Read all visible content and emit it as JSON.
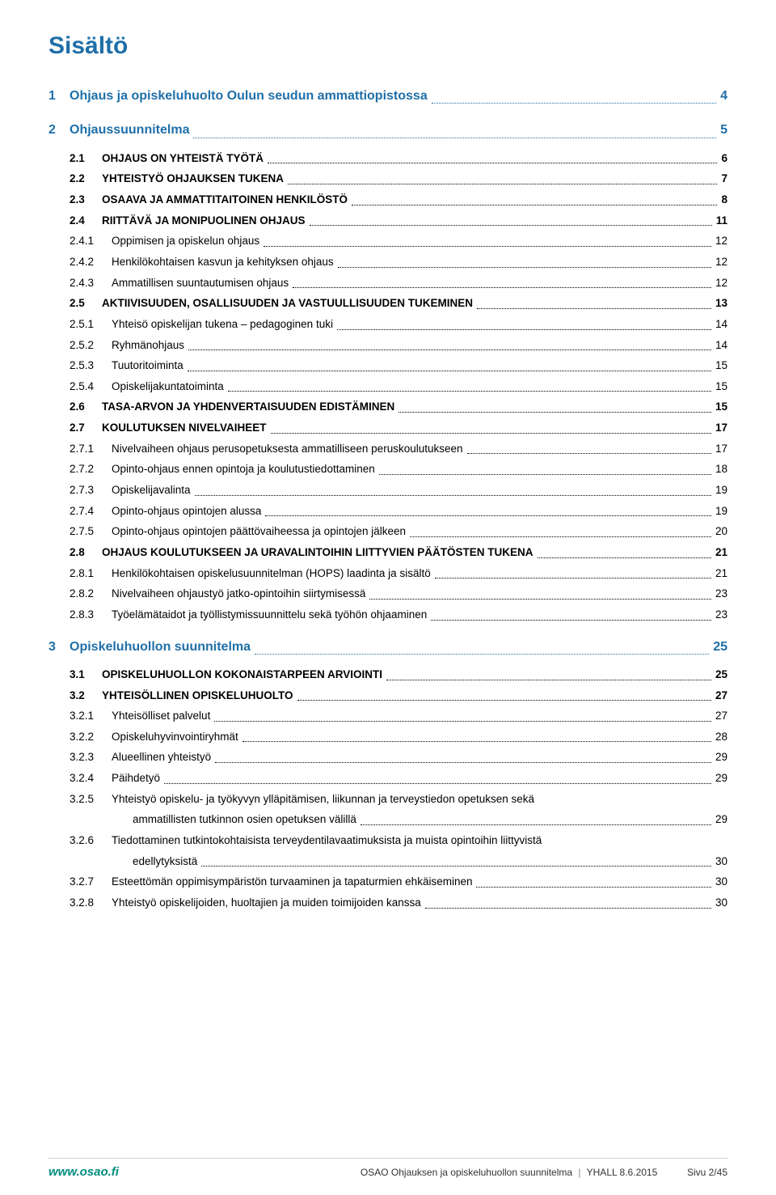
{
  "colors": {
    "heading": "#1f6fa8",
    "text": "#000000",
    "footer_brand": "#008d7e",
    "divider": "#d0d0d0",
    "dots": "#000000"
  },
  "fonts": {
    "title_size_pt": 22,
    "level1_size_pt": 12,
    "body_size_pt": 10,
    "footer_size_pt": 9
  },
  "title": "Sisältö",
  "toc": [
    {
      "level": 1,
      "num": "1",
      "label": "Ohjaus ja opiskeluhuolto Oulun seudun ammattiopistossa",
      "page": "4"
    },
    {
      "level": 1,
      "num": "2",
      "label": "Ohjaussuunnitelma",
      "page": "5"
    },
    {
      "level": 2,
      "num": "2.1",
      "label": "OHJAUS ON YHTEISTÄ TYÖTÄ",
      "page": "6"
    },
    {
      "level": 2,
      "num": "2.2",
      "label": "YHTEISTYÖ OHJAUKSEN TUKENA",
      "page": "7"
    },
    {
      "level": 2,
      "num": "2.3",
      "label": "OSAAVA JA AMMATTITAITOINEN HENKILÖSTÖ",
      "page": "8"
    },
    {
      "level": 2,
      "num": "2.4",
      "label": "RIITTÄVÄ JA MONIPUOLINEN OHJAUS",
      "page": "11"
    },
    {
      "level": 3,
      "num": "2.4.1",
      "label": "Oppimisen ja opiskelun ohjaus",
      "page": "12"
    },
    {
      "level": 3,
      "num": "2.4.2",
      "label": "Henkilökohtaisen kasvun ja kehityksen ohjaus",
      "page": "12"
    },
    {
      "level": 3,
      "num": "2.4.3",
      "label": "Ammatillisen suuntautumisen ohjaus",
      "page": "12"
    },
    {
      "level": 2,
      "num": "2.5",
      "label": "AKTIIVISUUDEN, OSALLISUUDEN JA VASTUULLISUUDEN TUKEMINEN",
      "page": "13"
    },
    {
      "level": 3,
      "num": "2.5.1",
      "label": "Yhteisö opiskelijan tukena – pedagoginen tuki",
      "page": "14"
    },
    {
      "level": 3,
      "num": "2.5.2",
      "label": "Ryhmänohjaus",
      "page": "14"
    },
    {
      "level": 3,
      "num": "2.5.3",
      "label": "Tuutoritoiminta",
      "page": "15"
    },
    {
      "level": 3,
      "num": "2.5.4",
      "label": "Opiskelijakuntatoiminta",
      "page": "15"
    },
    {
      "level": 2,
      "num": "2.6",
      "label": "TASA-ARVON JA YHDENVERTAISUUDEN EDISTÄMINEN",
      "page": "15"
    },
    {
      "level": 2,
      "num": "2.7",
      "label": "KOULUTUKSEN NIVELVAIHEET",
      "page": "17"
    },
    {
      "level": 3,
      "num": "2.7.1",
      "label": "Nivelvaiheen ohjaus perusopetuksesta ammatilliseen peruskoulutukseen",
      "page": "17"
    },
    {
      "level": 3,
      "num": "2.7.2",
      "label": "Opinto-ohjaus ennen opintoja ja koulutustiedottaminen",
      "page": "18"
    },
    {
      "level": 3,
      "num": "2.7.3",
      "label": "Opiskelijavalinta",
      "page": "19"
    },
    {
      "level": 3,
      "num": "2.7.4",
      "label": "Opinto-ohjaus opintojen alussa",
      "page": "19"
    },
    {
      "level": 3,
      "num": "2.7.5",
      "label": "Opinto-ohjaus opintojen päättövaiheessa ja opintojen jälkeen",
      "page": "20"
    },
    {
      "level": 2,
      "num": "2.8",
      "label": "OHJAUS KOULUTUKSEEN JA URAVALINTOIHIN LIITTYVIEN PÄÄTÖSTEN TUKENA",
      "page": "21"
    },
    {
      "level": 3,
      "num": "2.8.1",
      "label": "Henkilökohtaisen opiskelusuunnitelman (HOPS) laadinta ja sisältö",
      "page": "21"
    },
    {
      "level": 3,
      "num": "2.8.2",
      "label": "Nivelvaiheen ohjaustyö jatko-opintoihin siirtymisessä",
      "page": "23"
    },
    {
      "level": 3,
      "num": "2.8.3",
      "label": "Työelämätaidot ja työllistymissuunnittelu sekä työhön ohjaaminen",
      "page": "23"
    },
    {
      "level": 1,
      "num": "3",
      "label": "Opiskeluhuollon suunnitelma",
      "page": "25"
    },
    {
      "level": 2,
      "num": "3.1",
      "label": "OPISKELUHUOLLON KOKONAISTARPEEN ARVIOINTI",
      "page": "25"
    },
    {
      "level": 2,
      "num": "3.2",
      "label": "YHTEISÖLLINEN OPISKELUHUOLTO",
      "page": "27"
    },
    {
      "level": 3,
      "num": "3.2.1",
      "label": "Yhteisölliset palvelut",
      "page": "27"
    },
    {
      "level": 3,
      "num": "3.2.2",
      "label": "Opiskeluhyvinvointiryhmät",
      "page": "28"
    },
    {
      "level": 3,
      "num": "3.2.3",
      "label": "Alueellinen yhteistyö",
      "page": "29"
    },
    {
      "level": 3,
      "num": "3.2.4",
      "label": "Päihdetyö",
      "page": "29"
    },
    {
      "level": 3,
      "num": "3.2.5",
      "label": "Yhteistyö opiskelu- ja työkyvyn ylläpitämisen, liikunnan ja terveystiedon opetuksen sekä",
      "cont": "ammatillisten tutkinnon osien opetuksen välillä",
      "page": "29"
    },
    {
      "level": 3,
      "num": "3.2.6",
      "label": "Tiedottaminen tutkintokohtaisista terveydentilavaatimuksista ja muista opintoihin liittyvistä",
      "cont": "edellytyksistä",
      "page": "30"
    },
    {
      "level": 3,
      "num": "3.2.7",
      "label": "Esteettömän oppimisympäristön turvaaminen ja tapaturmien ehkäiseminen",
      "page": "30"
    },
    {
      "level": 3,
      "num": "3.2.8",
      "label": "Yhteistyö opiskelijoiden, huoltajien ja muiden toimijoiden kanssa",
      "page": "30"
    }
  ],
  "footer": {
    "brand": "www.osao.fi",
    "doc": "OSAO Ohjauksen ja opiskeluhuollon suunnitelma",
    "meta": "YHALL 8.6.2015",
    "page": "Sivu 2/45"
  }
}
